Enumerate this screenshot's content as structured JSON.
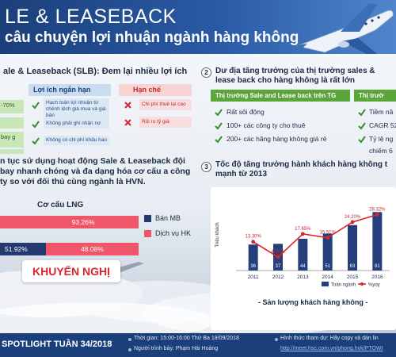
{
  "header": {
    "title_line1": "LE & LEASEBACK",
    "title_line2": "câu chuyện lợi nhuận ngành hàng không"
  },
  "section1": {
    "title": "ale & Leaseback (SLB): Đem lại nhiều lợi ích",
    "col_benefits": "Lợi ích ngắn hạn",
    "col_limits": "Hạn chế",
    "left_chips": [
      "-70%",
      "",
      "bay g",
      ""
    ],
    "benefits": [
      "Hạch toán lợi nhuận từ chênh lệch giá mua và giá bán",
      "Không phải ghi nhận nợ",
      "Không có chi phí khấu hao"
    ],
    "limits": [
      "Chi phí thuê lại cao",
      "Rủi ro tỷ giá"
    ],
    "text": "n tục sử dụng hoạt động Sale & Leaseback đội bay nhanh chóng và đa dạng hóa cơ cấu a công ty so với đối thủ cùng ngành là HVN.",
    "lng": {
      "title": "Cơ cấu LNG",
      "bar1_value": "93.26%",
      "bar2_value_a": "51.92%",
      "bar2_value_b": "48.08%",
      "legend": [
        "Bán MB",
        "Dịch vụ HK"
      ]
    },
    "recommend": "KHUYẾN NGHỊ"
  },
  "section2": {
    "number": "2",
    "title": "Dư địa tăng trưởng của thị trường sales & lease back cho hàng không là rất lớn",
    "col1_head": "Thị trường Sale and Lease back trên TG",
    "col2_head": "Thị trườ",
    "col1_items": [
      "Rất sôi động",
      "100+ các công ty cho thuê",
      "200+ các hãng hàng không giá rẻ"
    ],
    "col2_items": [
      "Tiềm nă",
      "CAGR 52",
      "Tỷ lệ ng",
      "chiếm 6"
    ]
  },
  "section3": {
    "number": "3",
    "title": "Tốc độ tăng trưởng hành khách hàng không t mạnh từ 2013",
    "footer_label": "- Sản lượng khách hàng không -"
  },
  "chart_data": {
    "type": "bar",
    "categories": [
      "2011",
      "2012",
      "2013",
      "2014",
      "2015",
      "2016"
    ],
    "series": [
      {
        "name": "Toàn ngành",
        "values": [
          36,
          37,
          44,
          51,
          63,
          81
        ]
      },
      {
        "name": "%yoy",
        "values": [
          13.3,
          4.8,
          17.65,
          15.51,
          24.2,
          28.32
        ]
      }
    ],
    "bar_labels": [
      "36",
      "37",
      "44",
      "51",
      "63",
      "81"
    ],
    "line_labels": [
      "13.30%",
      "4.80%",
      "17.65%",
      "15.51%",
      "24.20%",
      "28.32%"
    ],
    "ylabel": "Triệu khách",
    "legend": [
      "Toàn ngành",
      "%yoy"
    ],
    "colors": {
      "bars": "#243f7c",
      "line": "#d9262b"
    }
  },
  "footer": {
    "spotlight": "SPOTLIGHT TUẦN 34/2018",
    "time": "Thời gian: 15:00-16:00  Thứ Ba 18/09/2018",
    "presenter": "Người trình bày:  Phạm Hải Hoàng",
    "participation": "Hình thức tham dự: Hãy copy và dán lin",
    "link": "http://meet.hsc.com.vn/phong.hvk/PTOWI"
  },
  "colors": {
    "brand": "#1b3f7a",
    "accent_red": "#d9262b",
    "green_head": "#5ba63a",
    "bar_red": "#f0566a",
    "bar_navy": "#24396f"
  }
}
